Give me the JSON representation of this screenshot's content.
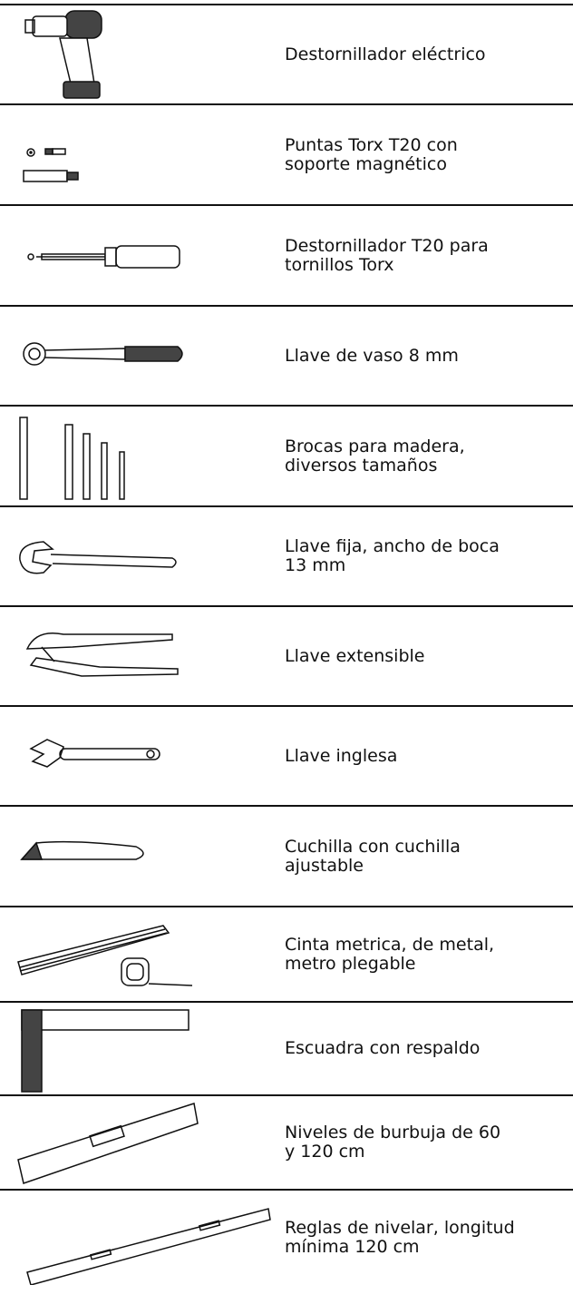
{
  "items": [
    {
      "lines": [
        "Destornillador eléctrico"
      ]
    },
    {
      "lines": [
        "Puntas Torx T20 con",
        "soporte magnético"
      ]
    },
    {
      "lines": [
        "Destornillador T20 para",
        "tornillos Torx"
      ]
    },
    {
      "lines": [
        "Llave de vaso 8 mm"
      ]
    },
    {
      "lines": [
        "Brocas para madera,",
        "diversos tamaños"
      ]
    },
    {
      "lines": [
        "Llave fija, ancho de boca",
        "13 mm"
      ]
    },
    {
      "lines": [
        "Llave extensible"
      ]
    },
    {
      "lines": [
        "Llave inglesa"
      ]
    },
    {
      "lines": [
        "Cuchilla con cuchilla",
        "ajustable"
      ]
    },
    {
      "lines": [
        "Cinta metrica, de metal,",
        "metro plegable"
      ]
    },
    {
      "lines": [
        "Escuadra con respaldo"
      ]
    },
    {
      "lines": [
        "Niveles de burbuja de 60",
        "y 120 cm"
      ]
    },
    {
      "lines": [
        "Reglas de nivelar, longitud",
        "mínima 120 cm"
      ]
    }
  ]
}
